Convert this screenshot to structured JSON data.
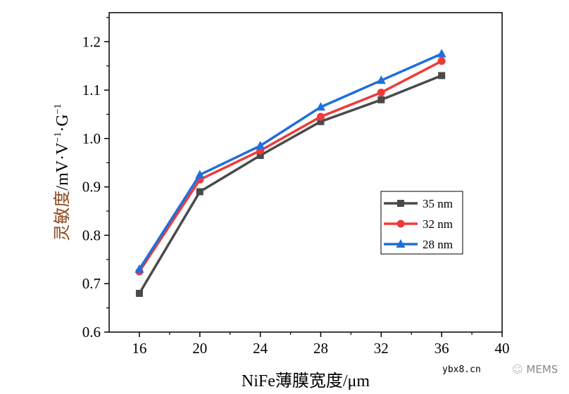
{
  "chart_data": {
    "type": "line",
    "xlabel": "NiFe薄膜宽度/μm",
    "ylabel_colored": "灵敏度",
    "ylabel_rest": "/mV·V",
    "ylabel_sup1": "−1",
    "ylabel_mid": "·G",
    "ylabel_sup2": "−1",
    "xlim": [
      14,
      40
    ],
    "ylim": [
      0.6,
      1.26
    ],
    "x_ticks": [
      "16",
      "20",
      "24",
      "28",
      "32",
      "36",
      "40"
    ],
    "y_ticks": [
      "0.6",
      "0.7",
      "0.8",
      "0.9",
      "1.0",
      "1.1",
      "1.2"
    ],
    "grid": false,
    "legend_placement": "center-right",
    "x": [
      16,
      20,
      24,
      28,
      32,
      36
    ],
    "series": [
      {
        "name": "35 nm",
        "values": [
          0.68,
          0.89,
          0.965,
          1.035,
          1.08,
          1.13
        ],
        "color": "#4a4a4a",
        "marker": "square"
      },
      {
        "name": "32 nm",
        "values": [
          0.725,
          0.915,
          0.975,
          1.045,
          1.095,
          1.16
        ],
        "color": "#ef3a3a",
        "marker": "circle"
      },
      {
        "name": "28 nm",
        "values": [
          0.73,
          0.925,
          0.985,
          1.065,
          1.12,
          1.175
        ],
        "color": "#1f6fdc",
        "marker": "triangle"
      }
    ],
    "ylabel_color": "#8b4a1c"
  },
  "watermark": {
    "site": "ybx8.cn",
    "brand": "MEMS"
  }
}
